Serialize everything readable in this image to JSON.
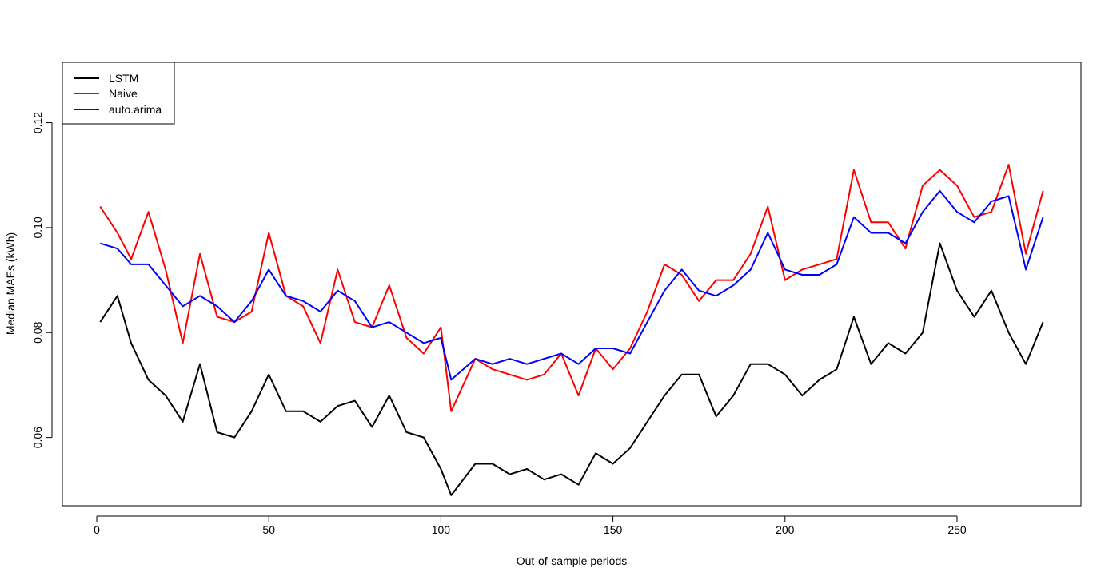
{
  "chart_data": {
    "type": "line",
    "title": "",
    "xlabel": "Out-of-sample periods",
    "ylabel": "Median MAEs (kWh)",
    "xlim": [
      0,
      276
    ],
    "ylim": [
      0.047,
      0.1315
    ],
    "x_ticks": [
      0,
      50,
      100,
      150,
      200,
      250
    ],
    "x_tick_labels": [
      "0",
      "50",
      "100",
      "150",
      "200",
      "250"
    ],
    "y_ticks": [
      0.06,
      0.08,
      0.1,
      0.12
    ],
    "y_tick_labels": [
      "0.06",
      "0.08",
      "0.10",
      "0.12"
    ],
    "legend": {
      "position": "top-left"
    },
    "series": [
      {
        "name": "LSTM",
        "color": "#000000",
        "x": [
          1,
          6,
          10,
          15,
          20,
          25,
          30,
          35,
          40,
          45,
          50,
          55,
          60,
          65,
          70,
          75,
          80,
          85,
          90,
          95,
          100,
          103,
          110,
          115,
          120,
          125,
          130,
          135,
          140,
          145,
          150,
          155,
          160,
          165,
          170,
          175,
          180,
          185,
          190,
          195,
          200,
          205,
          210,
          215,
          220,
          225,
          230,
          235,
          240,
          245,
          250,
          255,
          260,
          265,
          270,
          275
        ],
        "values": [
          0.082,
          0.087,
          0.078,
          0.071,
          0.068,
          0.063,
          0.074,
          0.061,
          0.06,
          0.065,
          0.072,
          0.065,
          0.065,
          0.063,
          0.066,
          0.067,
          0.062,
          0.068,
          0.061,
          0.06,
          0.054,
          0.049,
          0.055,
          0.055,
          0.053,
          0.054,
          0.052,
          0.053,
          0.051,
          0.057,
          0.055,
          0.058,
          0.063,
          0.068,
          0.072,
          0.072,
          0.064,
          0.068,
          0.074,
          0.074,
          0.072,
          0.068,
          0.071,
          0.073,
          0.083,
          0.074,
          0.078,
          0.076,
          0.08,
          0.097,
          0.088,
          0.083,
          0.088,
          0.08,
          0.074,
          0.082
        ]
      },
      {
        "name": "Naive",
        "color": "#ff0000",
        "x": [
          1,
          6,
          10,
          15,
          20,
          25,
          30,
          35,
          40,
          45,
          50,
          55,
          60,
          65,
          70,
          75,
          80,
          85,
          90,
          95,
          100,
          103,
          110,
          115,
          120,
          125,
          130,
          135,
          140,
          145,
          150,
          155,
          160,
          165,
          170,
          175,
          180,
          185,
          190,
          195,
          200,
          205,
          210,
          215,
          220,
          225,
          230,
          235,
          240,
          245,
          250,
          255,
          260,
          265,
          270,
          275
        ],
        "values": [
          0.104,
          0.099,
          0.094,
          0.103,
          0.092,
          0.078,
          0.095,
          0.083,
          0.082,
          0.084,
          0.099,
          0.087,
          0.085,
          0.078,
          0.092,
          0.082,
          0.081,
          0.089,
          0.079,
          0.076,
          0.081,
          0.065,
          0.075,
          0.073,
          0.072,
          0.071,
          0.072,
          0.076,
          0.068,
          0.077,
          0.073,
          0.077,
          0.084,
          0.093,
          0.091,
          0.086,
          0.09,
          0.09,
          0.095,
          0.104,
          0.09,
          0.092,
          0.093,
          0.094,
          0.111,
          0.101,
          0.101,
          0.096,
          0.108,
          0.111,
          0.108,
          0.102,
          0.103,
          0.112,
          0.095,
          0.107
        ]
      },
      {
        "name": "auto.arima",
        "color": "#0000ff",
        "x": [
          1,
          6,
          10,
          15,
          20,
          25,
          30,
          35,
          40,
          45,
          50,
          55,
          60,
          65,
          70,
          75,
          80,
          85,
          90,
          95,
          100,
          103,
          110,
          115,
          120,
          125,
          130,
          135,
          140,
          145,
          150,
          155,
          160,
          165,
          170,
          175,
          180,
          185,
          190,
          195,
          200,
          205,
          210,
          215,
          220,
          225,
          230,
          235,
          240,
          245,
          250,
          255,
          260,
          265,
          270,
          275
        ],
        "values": [
          0.097,
          0.096,
          0.093,
          0.093,
          0.089,
          0.085,
          0.087,
          0.085,
          0.082,
          0.086,
          0.092,
          0.087,
          0.086,
          0.084,
          0.088,
          0.086,
          0.081,
          0.082,
          0.08,
          0.078,
          0.079,
          0.071,
          0.075,
          0.074,
          0.075,
          0.074,
          0.075,
          0.076,
          0.074,
          0.077,
          0.077,
          0.076,
          0.082,
          0.088,
          0.092,
          0.088,
          0.087,
          0.089,
          0.092,
          0.099,
          0.092,
          0.091,
          0.091,
          0.093,
          0.102,
          0.099,
          0.099,
          0.097,
          0.103,
          0.107,
          0.103,
          0.101,
          0.105,
          0.106,
          0.092,
          0.102
        ]
      }
    ]
  }
}
